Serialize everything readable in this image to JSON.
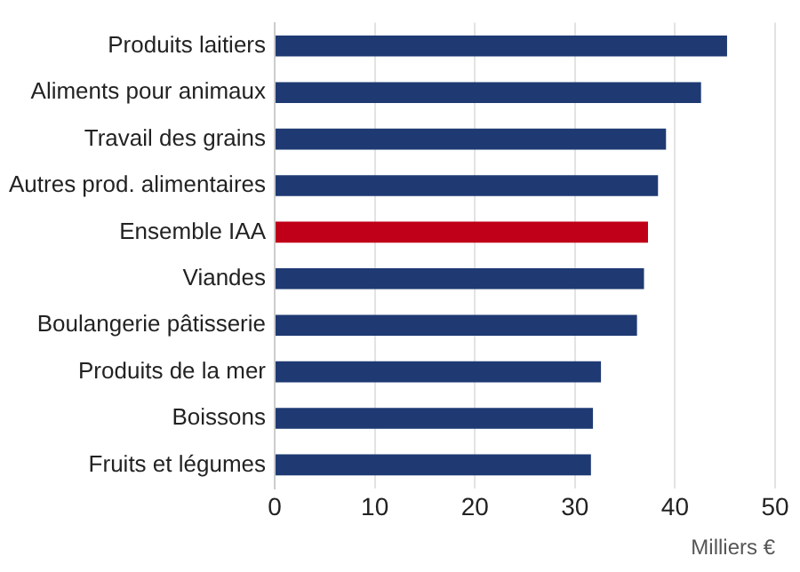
{
  "chart_data": {
    "type": "bar",
    "orientation": "horizontal",
    "xlabel": "Milliers €",
    "categories": [
      "Produits laitiers",
      "Aliments pour animaux",
      "Travail des grains",
      "Autres prod. alimentaires",
      "Ensemble IAA",
      "Viandes",
      "Boulangerie pâtisserie",
      "Produits de la mer",
      "Boissons",
      "Fruits et légumes"
    ],
    "values": [
      45.2,
      42.6,
      39.1,
      38.3,
      37.3,
      36.9,
      36.2,
      32.6,
      31.8,
      31.6
    ],
    "colors": [
      "#1f3a73",
      "#1f3a73",
      "#1f3a73",
      "#1f3a73",
      "#c00018",
      "#1f3a73",
      "#1f3a73",
      "#1f3a73",
      "#1f3a73",
      "#1f3a73"
    ],
    "xlim": [
      0,
      50
    ],
    "xticks": [
      0,
      10,
      20,
      30,
      40,
      50
    ],
    "grid": "x",
    "legend": false
  }
}
